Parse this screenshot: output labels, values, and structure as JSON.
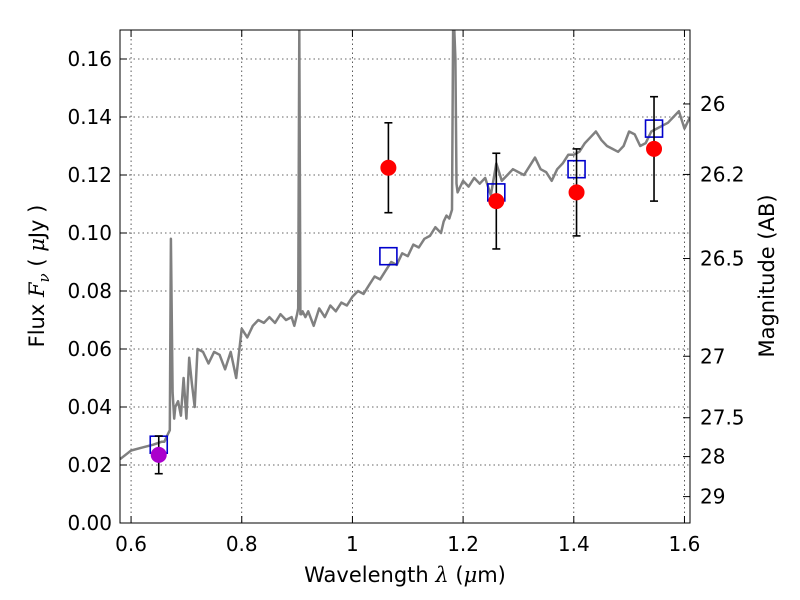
{
  "chart_data": {
    "type": "scatter",
    "xlabel": "Wavelength  λ (μm)",
    "ylabel": "Flux  F_ν  ( μJy )",
    "ylabel_right": "Magnitude (AB)",
    "xlim": [
      0.58,
      1.61
    ],
    "ylim": [
      0.0,
      0.17
    ],
    "grid": true,
    "x_ticks": [
      0.6,
      0.8,
      1.0,
      1.2,
      1.4,
      1.6
    ],
    "x_tick_labels": [
      "0.6",
      "0.8",
      "1",
      "1.2",
      "1.4",
      "1.6"
    ],
    "y_ticks": [
      0.0,
      0.02,
      0.04,
      0.06,
      0.08,
      0.1,
      0.12,
      0.14,
      0.16
    ],
    "y_tick_labels": [
      "0.00",
      "0.02",
      "0.04",
      "0.06",
      "0.08",
      "0.10",
      "0.12",
      "0.14",
      "0.16"
    ],
    "right_ticks": [
      {
        "label": "26",
        "flux": 0.1445
      },
      {
        "label": "26.2",
        "flux": 0.1202
      },
      {
        "label": "26.5",
        "flux": 0.0912
      },
      {
        "label": "27",
        "flux": 0.0575
      },
      {
        "label": "27.5",
        "flux": 0.0363
      },
      {
        "label": "28",
        "flux": 0.0229
      },
      {
        "label": "29",
        "flux": 0.0091
      }
    ],
    "series": [
      {
        "kind": "model-spectrum",
        "color": "#808080",
        "x": [
          0.58,
          0.6,
          0.62,
          0.64,
          0.655,
          0.66,
          0.665,
          0.67,
          0.672,
          0.675,
          0.678,
          0.68,
          0.685,
          0.69,
          0.695,
          0.7,
          0.705,
          0.71,
          0.715,
          0.72,
          0.73,
          0.74,
          0.75,
          0.76,
          0.77,
          0.78,
          0.79,
          0.8,
          0.81,
          0.82,
          0.83,
          0.84,
          0.85,
          0.86,
          0.87,
          0.88,
          0.89,
          0.895,
          0.9,
          0.902,
          0.904,
          0.906,
          0.908,
          0.91,
          0.915,
          0.92,
          0.93,
          0.94,
          0.95,
          0.96,
          0.97,
          0.98,
          0.99,
          1.0,
          1.01,
          1.02,
          1.03,
          1.04,
          1.05,
          1.06,
          1.07,
          1.08,
          1.09,
          1.1,
          1.11,
          1.12,
          1.13,
          1.14,
          1.15,
          1.16,
          1.165,
          1.17,
          1.175,
          1.18,
          1.182,
          1.184,
          1.186,
          1.188,
          1.19,
          1.195,
          1.2,
          1.21,
          1.22,
          1.23,
          1.24,
          1.25,
          1.26,
          1.27,
          1.28,
          1.29,
          1.3,
          1.31,
          1.32,
          1.33,
          1.34,
          1.35,
          1.36,
          1.37,
          1.38,
          1.39,
          1.4,
          1.41,
          1.42,
          1.43,
          1.44,
          1.45,
          1.46,
          1.47,
          1.48,
          1.49,
          1.5,
          1.51,
          1.52,
          1.53,
          1.54,
          1.55,
          1.56,
          1.57,
          1.58,
          1.59,
          1.6,
          1.61
        ],
        "y": [
          0.022,
          0.025,
          0.026,
          0.027,
          0.028,
          0.028,
          0.03,
          0.032,
          0.098,
          0.045,
          0.036,
          0.04,
          0.042,
          0.037,
          0.05,
          0.036,
          0.057,
          0.048,
          0.04,
          0.06,
          0.059,
          0.055,
          0.059,
          0.058,
          0.053,
          0.059,
          0.05,
          0.067,
          0.064,
          0.068,
          0.07,
          0.069,
          0.071,
          0.069,
          0.072,
          0.07,
          0.071,
          0.068,
          0.072,
          0.074,
          0.17,
          0.072,
          0.072,
          0.073,
          0.071,
          0.073,
          0.068,
          0.074,
          0.071,
          0.075,
          0.073,
          0.076,
          0.075,
          0.078,
          0.08,
          0.079,
          0.082,
          0.085,
          0.084,
          0.087,
          0.09,
          0.089,
          0.093,
          0.092,
          0.096,
          0.095,
          0.098,
          0.099,
          0.102,
          0.1,
          0.104,
          0.106,
          0.105,
          0.108,
          0.17,
          0.17,
          0.16,
          0.117,
          0.114,
          0.116,
          0.118,
          0.116,
          0.119,
          0.117,
          0.119,
          0.113,
          0.124,
          0.118,
          0.12,
          0.122,
          0.121,
          0.12,
          0.123,
          0.126,
          0.122,
          0.121,
          0.118,
          0.122,
          0.124,
          0.127,
          0.127,
          0.128,
          0.131,
          0.133,
          0.135,
          0.132,
          0.13,
          0.129,
          0.128,
          0.13,
          0.135,
          0.134,
          0.13,
          0.131,
          0.135,
          0.136,
          0.137,
          0.138,
          0.14,
          0.142,
          0.136,
          0.14
        ]
      },
      {
        "kind": "model-photometry",
        "marker": "open-square",
        "color": "#0000cc",
        "x": [
          0.65,
          1.065,
          1.26,
          1.405,
          1.545
        ],
        "y": [
          0.027,
          0.092,
          0.114,
          0.122,
          0.136
        ]
      },
      {
        "kind": "observed",
        "marker": "filled-circle",
        "color": "#ff0000",
        "x": [
          1.065,
          1.26,
          1.405,
          1.545
        ],
        "y": [
          0.1225,
          0.111,
          0.114,
          0.129
        ],
        "err": [
          0.0155,
          0.0165,
          0.015,
          0.018
        ]
      },
      {
        "kind": "observed",
        "marker": "filled-circle",
        "color": "#aa00cc",
        "x": [
          0.65
        ],
        "y": [
          0.0235
        ],
        "err": [
          0.0065
        ]
      }
    ]
  }
}
